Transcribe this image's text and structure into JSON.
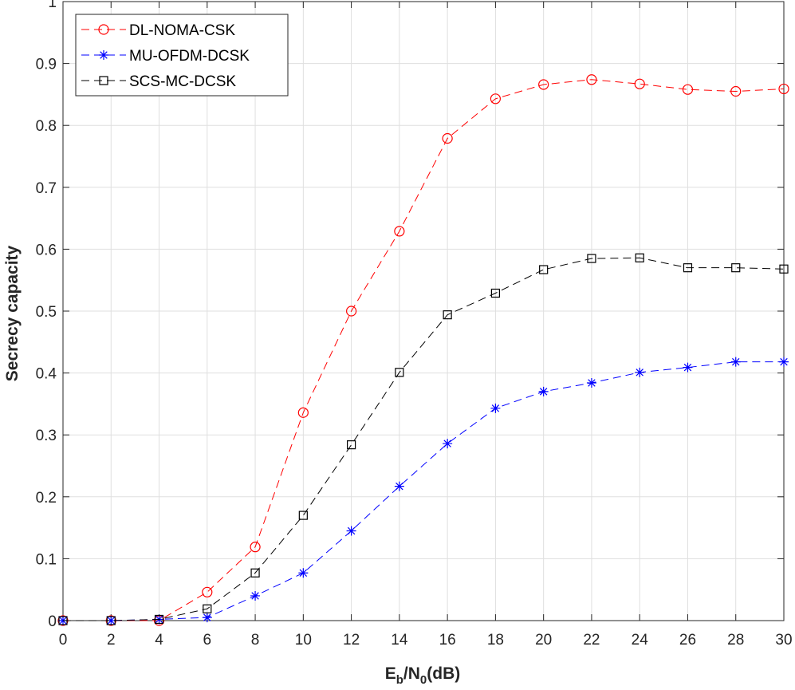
{
  "chart_data": {
    "type": "line",
    "xlabel": {
      "base": "E",
      "sub1": "b",
      "mid": "/N",
      "sub2": "0",
      "tail": "(dB)"
    },
    "ylabel": "Secrecy capacity",
    "xlim": [
      0,
      30
    ],
    "ylim": [
      0,
      1
    ],
    "xticks": [
      0,
      2,
      4,
      6,
      8,
      10,
      12,
      14,
      16,
      18,
      20,
      22,
      24,
      26,
      28,
      30
    ],
    "yticks": [
      0,
      0.1,
      0.2,
      0.3,
      0.4,
      0.5,
      0.6,
      0.7,
      0.8,
      0.9,
      1
    ],
    "grid": true,
    "legend_position": "top-left",
    "x": [
      0,
      2,
      4,
      6,
      8,
      10,
      12,
      14,
      16,
      18,
      20,
      22,
      24,
      26,
      28,
      30
    ],
    "series": [
      {
        "name": "DL-NOMA-CSK",
        "color": "#ff0000",
        "marker": "circle",
        "values": [
          0,
          0,
          0,
          0.046,
          0.119,
          0.336,
          0.5,
          0.629,
          0.779,
          0.843,
          0.866,
          0.874,
          0.867,
          0.858,
          0.855,
          0.859
        ]
      },
      {
        "name": "MU-OFDM-DCSK",
        "color": "#0000ff",
        "marker": "asterisk",
        "values": [
          0,
          0,
          0.002,
          0.005,
          0.04,
          0.077,
          0.145,
          0.217,
          0.286,
          0.343,
          0.37,
          0.384,
          0.401,
          0.409,
          0.418,
          0.418
        ]
      },
      {
        "name": "SCS-MC-DCSK",
        "color": "#000000",
        "marker": "square",
        "values": [
          0,
          0,
          0.002,
          0.019,
          0.077,
          0.17,
          0.284,
          0.401,
          0.494,
          0.529,
          0.567,
          0.585,
          0.586,
          0.57,
          0.57,
          0.568
        ]
      }
    ]
  }
}
